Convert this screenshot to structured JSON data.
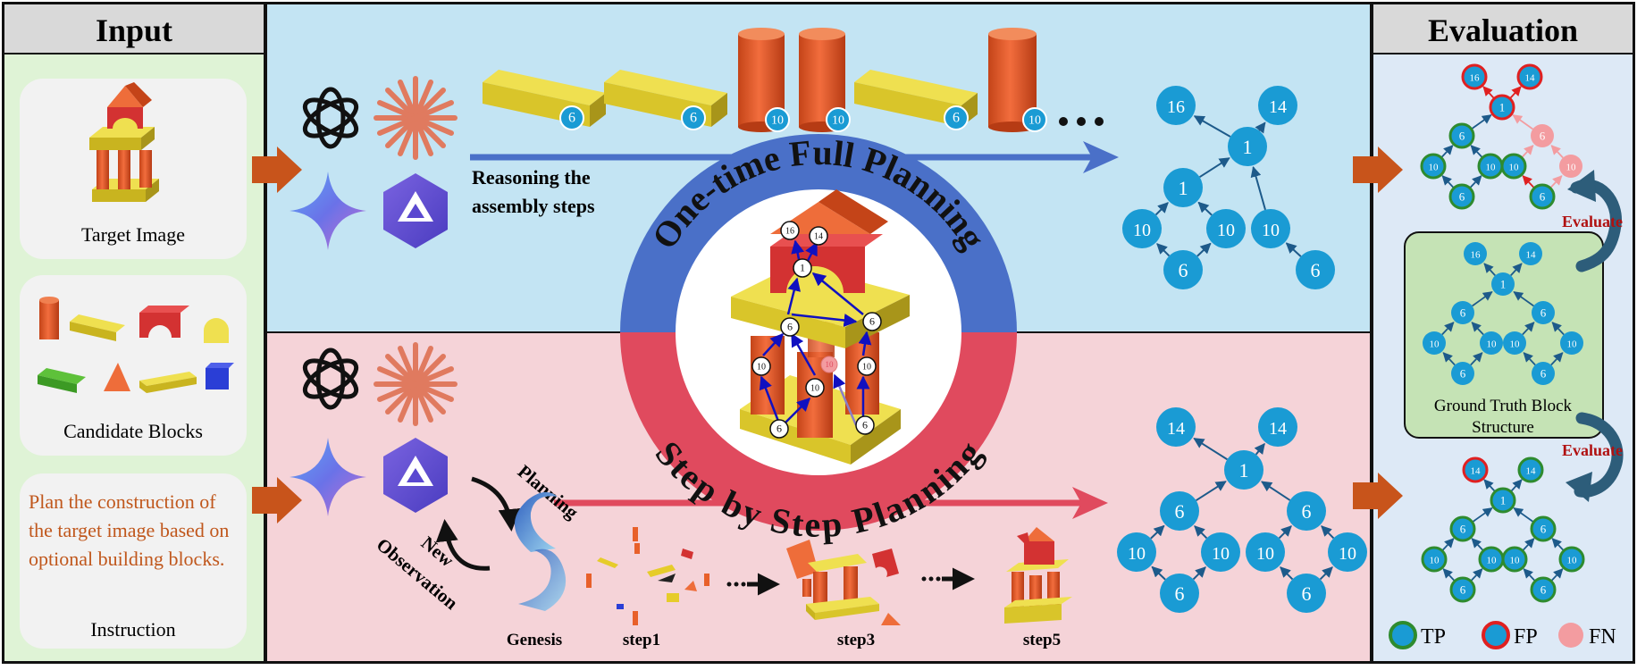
{
  "input": {
    "title": "Input",
    "target_caption": "Target Image",
    "blocks_caption": "Candidate Blocks",
    "instruction_text": "Plan the construction of the target image based on optional building blocks.",
    "instruction_caption": "Instruction"
  },
  "top_panel": {
    "reasoning_line1": "Reasoning the",
    "reasoning_line2": "assembly steps",
    "arc_title": "One-time Full Planning",
    "block_labels": [
      "6",
      "6",
      "10",
      "10",
      "6",
      "10"
    ]
  },
  "bottom_panel": {
    "arc_title": "Step by Step Planning",
    "planning": "Planning",
    "new_observation_1": "New",
    "new_observation_2": "Observation",
    "genesis": "Genesis",
    "steps": [
      "step1",
      "step3",
      "step5"
    ]
  },
  "center_graph": {
    "nodes": [
      "16",
      "14",
      "1",
      "6",
      "6",
      "10",
      "10",
      "10",
      "6",
      "6"
    ]
  },
  "top_graph": {
    "nodes": [
      "16",
      "14",
      "1",
      "1",
      "10",
      "10",
      "10",
      "6",
      "6"
    ]
  },
  "bottom_graph": {
    "nodes": [
      "14",
      "14",
      "1",
      "6",
      "6",
      "10",
      "10",
      "10",
      "10",
      "6",
      "6"
    ]
  },
  "evaluation": {
    "title": "Evaluation",
    "evaluate": "Evaluate",
    "gt_caption_1": "Ground Truth Block",
    "gt_caption_2": "Structure",
    "legend": {
      "tp": "TP",
      "fp": "FP",
      "fn": "FN"
    },
    "top_graph": [
      "16",
      "14",
      "1",
      "6",
      "6",
      "10",
      "10",
      "10",
      "10",
      "6",
      "6"
    ],
    "gt_graph": [
      "16",
      "14",
      "1",
      "6",
      "6",
      "10",
      "10",
      "10",
      "10",
      "6",
      "6"
    ],
    "bottom_graph": [
      "14",
      "14",
      "1",
      "6",
      "6",
      "10",
      "10",
      "10",
      "10",
      "6",
      "6"
    ]
  },
  "colors": {
    "input_bg": "#dff3d6",
    "top_bg": "#c3e4f3",
    "bottom_bg": "#f5d3d8",
    "eval_bg": "#dde9f6",
    "node": "#1a9bd4",
    "tp_ring": "#2e8b2e",
    "fp_ring": "#e02020",
    "fn": "#f39ca0",
    "blue_arc": "#4a70c8",
    "red_arc": "#e04a5e",
    "arrow_orange": "#c8541b",
    "instruction_text": "#c0571c"
  }
}
